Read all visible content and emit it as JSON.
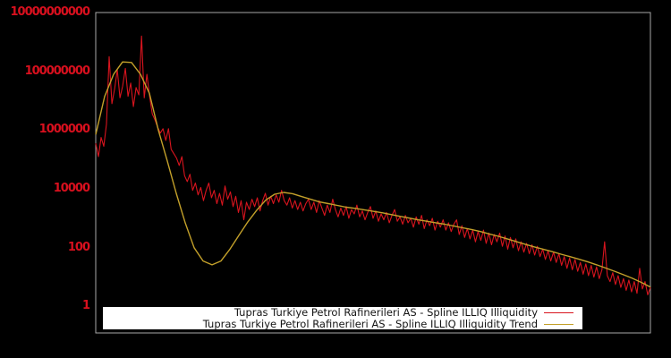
{
  "colors": {
    "background": "#000000",
    "plot_border": "#a9a9a9",
    "tick_label": "#d8101e",
    "legend_bg": "#ffffff",
    "legend_text": "#141414",
    "series_illiquidity": "#d8141e",
    "series_trend": "#c3a02a"
  },
  "legend": {
    "items": [
      {
        "label": "Tupras Turkiye Petrol Rafinerileri AS - Spline ILLIQ Illiquidity"
      },
      {
        "label": "Tupras Turkiye Petrol Rafinerileri AS - Spline ILLIQ Illiquidity Trend"
      }
    ]
  },
  "chart_data": {
    "type": "line",
    "title": "",
    "xlabel": "",
    "ylabel": "",
    "yscale": "log10",
    "ylim_log10": [
      0,
      10
    ],
    "grid": false,
    "x_axis_labels_visible": false,
    "ytick_values": [
      10000000000,
      100000000,
      1000000,
      10000,
      100,
      1
    ],
    "ytick_labels": [
      "10000000000",
      "100000000",
      "1000000",
      "10000",
      "100",
      "1"
    ],
    "legend_position": "bottom-center",
    "series": [
      {
        "name": "Tupras Turkiye Petrol Rafinerileri AS - Spline ILLIQ Illiquidity",
        "color": "#d8141e",
        "stroke_width": 1.1,
        "log10_values": [
          5.55,
          5.1,
          5.75,
          5.45,
          6.2,
          8.5,
          6.9,
          7.4,
          8.05,
          7.1,
          7.5,
          8.1,
          7.15,
          7.6,
          6.8,
          7.45,
          7.2,
          9.2,
          7.1,
          7.9,
          7.15,
          6.55,
          6.35,
          6.1,
          5.9,
          6.05,
          5.65,
          6.05,
          5.35,
          5.2,
          5.05,
          4.8,
          5.1,
          4.45,
          4.25,
          4.5,
          3.95,
          4.2,
          3.8,
          4.05,
          3.6,
          3.95,
          4.2,
          3.7,
          3.95,
          3.5,
          3.85,
          3.45,
          4.1,
          3.65,
          3.9,
          3.4,
          3.75,
          3.2,
          3.6,
          2.95,
          3.55,
          3.3,
          3.65,
          3.4,
          3.7,
          3.25,
          3.6,
          3.85,
          3.45,
          3.75,
          3.5,
          3.8,
          3.55,
          3.95,
          3.6,
          3.45,
          3.7,
          3.35,
          3.6,
          3.3,
          3.55,
          3.25,
          3.5,
          3.65,
          3.3,
          3.55,
          3.2,
          3.6,
          3.35,
          3.1,
          3.45,
          3.2,
          3.65,
          3.3,
          3.05,
          3.35,
          3.1,
          3.4,
          3.0,
          3.3,
          3.15,
          3.45,
          3.05,
          3.25,
          2.95,
          3.2,
          3.4,
          3.0,
          3.25,
          2.9,
          3.15,
          2.95,
          3.2,
          2.85,
          3.1,
          3.3,
          2.9,
          3.05,
          2.8,
          3.1,
          2.85,
          3.0,
          2.7,
          3.05,
          2.8,
          3.1,
          2.65,
          2.95,
          2.75,
          3.0,
          2.6,
          2.9,
          2.7,
          2.95,
          2.6,
          2.85,
          2.55,
          2.8,
          2.95,
          2.45,
          2.75,
          2.35,
          2.65,
          2.3,
          2.6,
          2.2,
          2.55,
          2.25,
          2.6,
          2.15,
          2.5,
          2.1,
          2.45,
          2.2,
          2.5,
          2.05,
          2.4,
          1.95,
          2.35,
          2.0,
          2.3,
          1.9,
          2.2,
          1.85,
          2.15,
          1.8,
          2.1,
          1.75,
          2.05,
          1.7,
          1.95,
          1.6,
          1.9,
          1.55,
          1.85,
          1.5,
          1.8,
          1.4,
          1.7,
          1.3,
          1.65,
          1.25,
          1.6,
          1.2,
          1.5,
          1.1,
          1.45,
          1.05,
          1.4,
          1.0,
          1.35,
          0.95,
          1.25,
          2.2,
          1.05,
          0.85,
          1.15,
          0.75,
          1.05,
          0.65,
          0.95,
          0.55,
          0.9,
          0.5,
          0.85,
          0.45,
          1.3,
          0.6,
          0.85,
          0.4,
          0.65
        ]
      },
      {
        "name": "Tupras Turkiye Petrol Rafinerileri AS - Spline ILLIQ Illiquidity Trend",
        "color": "#c3a02a",
        "stroke_width": 1.4,
        "log10_values": [
          5.85,
          7.15,
          7.9,
          8.32,
          8.3,
          7.9,
          7.25,
          6.0,
          4.95,
          3.85,
          2.85,
          2.0,
          1.55,
          1.42,
          1.55,
          1.95,
          2.42,
          2.88,
          3.28,
          3.62,
          3.82,
          3.88,
          3.84,
          3.74,
          3.65,
          3.56,
          3.5,
          3.44,
          3.38,
          3.34,
          3.29,
          3.24,
          3.19,
          3.13,
          3.07,
          3.01,
          2.95,
          2.9,
          2.85,
          2.8,
          2.74,
          2.68,
          2.62,
          2.55,
          2.47,
          2.39,
          2.3,
          2.21,
          2.12,
          2.03,
          1.95,
          1.87,
          1.78,
          1.7,
          1.61,
          1.52,
          1.42,
          1.31,
          1.2,
          1.08,
          0.96,
          0.82,
          0.66
        ]
      }
    ]
  }
}
